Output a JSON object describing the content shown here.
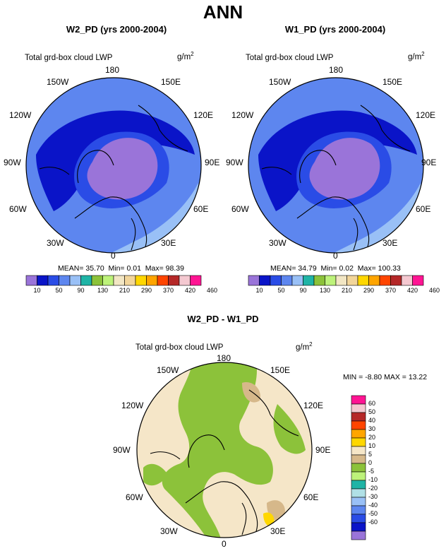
{
  "page": {
    "title": "ANN"
  },
  "colors": {
    "abs_scale": [
      "#9a74d9",
      "#0a14c8",
      "#2a4ce6",
      "#5d86ef",
      "#99c0f6",
      "#1fb4a6",
      "#8cc23a",
      "#bdf27a",
      "#f2e6c4",
      "#f2d59a",
      "#ffd700",
      "#ffa500",
      "#ff4500",
      "#b52828",
      "#f4c8d0",
      "#ff1493"
    ],
    "diff_scale": [
      "#9a74d9",
      "#0a14c8",
      "#2a4ce6",
      "#5d86ef",
      "#99c0f6",
      "#b0e0e6",
      "#1fb4a6",
      "#bdf27a",
      "#8cc23a",
      "#d6b88a",
      "#f5e6c8",
      "#ffd700",
      "#ffa500",
      "#ff4500",
      "#b52828",
      "#f4c8d0",
      "#ff1493"
    ]
  },
  "panels": [
    {
      "id": "w2",
      "title": "W2_PD (yrs 2000-2004)",
      "variable": "Total grd-box cloud LWP",
      "units": "g/m",
      "units_sup": "2",
      "lon_labels": [
        "180",
        "150E",
        "120E",
        "90E",
        "60E",
        "30E",
        "0",
        "30W",
        "60W",
        "90W",
        "120W",
        "150W"
      ],
      "stats": {
        "mean_label": "MEAN=",
        "mean": "35.70",
        "min_label": "Min=",
        "min": "0.01",
        "max_label": "Max=",
        "max": "98.39"
      },
      "colorbar_ticks": [
        "10",
        "50",
        "90",
        "130",
        "210",
        "290",
        "370",
        "420",
        "460"
      ]
    },
    {
      "id": "w1",
      "title": "W1_PD (yrs 2000-2004)",
      "variable": "Total grd-box cloud LWP",
      "units": "g/m",
      "units_sup": "2",
      "lon_labels": [
        "180",
        "150E",
        "120E",
        "90E",
        "60E",
        "30E",
        "0",
        "30W",
        "60W",
        "90W",
        "120W",
        "150W"
      ],
      "stats": {
        "mean_label": "MEAN=",
        "mean": "34.79",
        "min_label": "Min=",
        "min": "0.02",
        "max_label": "Max=",
        "max": "100.33"
      },
      "colorbar_ticks": [
        "10",
        "50",
        "90",
        "130",
        "210",
        "290",
        "370",
        "420",
        "460"
      ]
    },
    {
      "id": "diff",
      "title": "W2_PD - W1_PD",
      "variable": "Total grd-box cloud LWP",
      "units": "g/m",
      "units_sup": "2",
      "lon_labels": [
        "180",
        "150E",
        "120E",
        "90E",
        "60E",
        "30E",
        "0",
        "30W",
        "60W",
        "90W",
        "120W",
        "150W"
      ],
      "stats": {
        "min_label": "MIN =",
        "min": "-8.80",
        "max_label": "MAX =",
        "max": "13.22"
      },
      "colorbar_ticks": [
        "60",
        "50",
        "40",
        "30",
        "20",
        "10",
        "5",
        "0",
        "-5",
        "-10",
        "-20",
        "-30",
        "-40",
        "-50",
        "-60"
      ]
    }
  ]
}
